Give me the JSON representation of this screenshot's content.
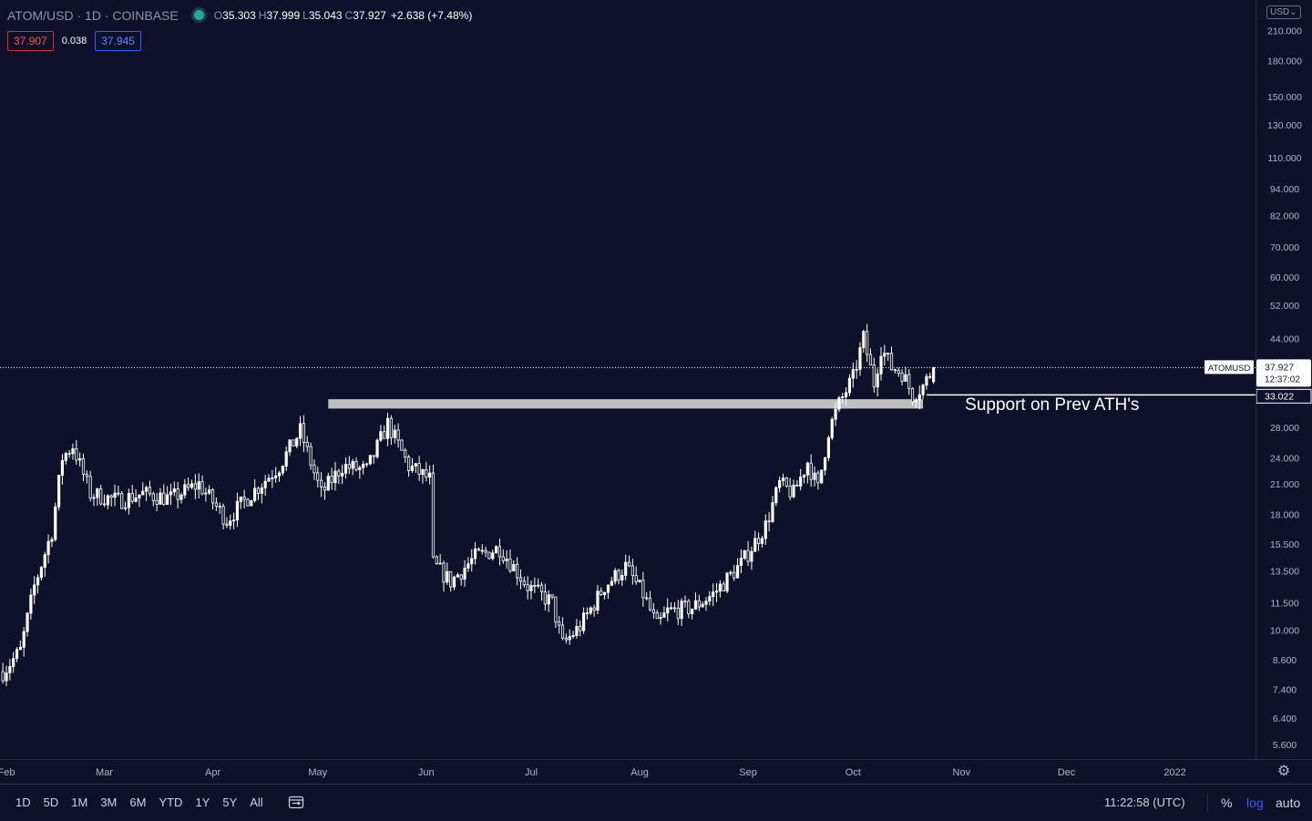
{
  "header": {
    "symbol": "ATOM/USD · 1D · COINBASE",
    "open_key": "O",
    "open": "35.303",
    "high_key": "H",
    "high": "37.999",
    "low_key": "L",
    "low": "35.043",
    "close_key": "C",
    "close": "37.927",
    "change": "+2.638 (+7.48%)"
  },
  "quote": {
    "bid": "37.907",
    "spread": "0.038",
    "ask": "37.945"
  },
  "currency": "USD",
  "colors": {
    "background": "#0f112a",
    "candle": "#ffffff",
    "support_zone": "#bfbfbf",
    "bid": "#ff5252",
    "ask": "#2962ff",
    "log_active": "#2962ff"
  },
  "chart_data": {
    "type": "candlestick",
    "scale": "log",
    "ylim": [
      5.2,
      245
    ],
    "price_axis_ticks": [
      "210.000",
      "180.000",
      "150.000",
      "130.000",
      "110.000",
      "94.000",
      "82.000",
      "70.000",
      "60.000",
      "52.000",
      "44.000",
      "28.000",
      "24.000",
      "21.000",
      "18.000",
      "15.500",
      "13.500",
      "11.500",
      "10.000",
      "8.600",
      "7.400",
      "6.400",
      "5.600"
    ],
    "price_axis_tick_values": [
      210,
      180,
      150,
      130,
      110,
      94,
      82,
      70,
      60,
      52,
      44,
      28,
      24,
      21,
      18,
      15.5,
      13.5,
      11.5,
      10,
      8.6,
      7.4,
      6.4,
      5.6
    ],
    "time_axis_ticks": [
      "Feb",
      "Mar",
      "Apr",
      "May",
      "Jun",
      "Jul",
      "Aug",
      "Sep",
      "Oct",
      "Nov",
      "Dec",
      "2022"
    ],
    "time_axis_tick_dates": [
      "2021-02-01",
      "2021-03-01",
      "2021-04-01",
      "2021-05-01",
      "2021-06-01",
      "2021-07-01",
      "2021-08-01",
      "2021-09-01",
      "2021-10-01",
      "2021-11-01",
      "2021-12-01",
      "2022-01-01"
    ],
    "x_start": "2021-02-01",
    "x_end": "2022-01-17",
    "candles_first_date": "2021-01-31",
    "candles_last_date": "2021-10-24",
    "anchor_closes": [
      {
        "date": "2021-01-31",
        "close": 8.1
      },
      {
        "date": "2021-02-05",
        "close": 9.0
      },
      {
        "date": "2021-02-09",
        "close": 12.5
      },
      {
        "date": "2021-02-14",
        "close": 16.5
      },
      {
        "date": "2021-02-17",
        "close": 24.0
      },
      {
        "date": "2021-02-20",
        "close": 25.5
      },
      {
        "date": "2021-02-25",
        "close": 20.0
      },
      {
        "date": "2021-03-05",
        "close": 19.3
      },
      {
        "date": "2021-03-12",
        "close": 20.0
      },
      {
        "date": "2021-03-20",
        "close": 19.5
      },
      {
        "date": "2021-03-28",
        "close": 21.0
      },
      {
        "date": "2021-04-05",
        "close": 17.5
      },
      {
        "date": "2021-04-12",
        "close": 20.0
      },
      {
        "date": "2021-04-20",
        "close": 23.0
      },
      {
        "date": "2021-04-26",
        "close": 27.5
      },
      {
        "date": "2021-05-02",
        "close": 20.0
      },
      {
        "date": "2021-05-08",
        "close": 23.0
      },
      {
        "date": "2021-05-15",
        "close": 22.5
      },
      {
        "date": "2021-05-21",
        "close": 28.5
      },
      {
        "date": "2021-05-27",
        "close": 23.0
      },
      {
        "date": "2021-06-02",
        "close": 21.5
      },
      {
        "date": "2021-06-03",
        "close": 14.0
      },
      {
        "date": "2021-06-08",
        "close": 12.8
      },
      {
        "date": "2021-06-15",
        "close": 14.5
      },
      {
        "date": "2021-06-22",
        "close": 15.2
      },
      {
        "date": "2021-06-30",
        "close": 12.5
      },
      {
        "date": "2021-07-07",
        "close": 11.5
      },
      {
        "date": "2021-07-10",
        "close": 9.3
      },
      {
        "date": "2021-07-15",
        "close": 10.2
      },
      {
        "date": "2021-07-22",
        "close": 12.5
      },
      {
        "date": "2021-07-28",
        "close": 13.8
      },
      {
        "date": "2021-08-02",
        "close": 12.0
      },
      {
        "date": "2021-08-06",
        "close": 10.2
      },
      {
        "date": "2021-08-09",
        "close": 11.0
      },
      {
        "date": "2021-08-16",
        "close": 11.2
      },
      {
        "date": "2021-08-22",
        "close": 12.0
      },
      {
        "date": "2021-08-30",
        "close": 14.0
      },
      {
        "date": "2021-09-06",
        "close": 17.0
      },
      {
        "date": "2021-09-10",
        "close": 21.0
      },
      {
        "date": "2021-09-14",
        "close": 20.0
      },
      {
        "date": "2021-09-18",
        "close": 23.5
      },
      {
        "date": "2021-09-21",
        "close": 20.5
      },
      {
        "date": "2021-09-24",
        "close": 27.5
      },
      {
        "date": "2021-09-27",
        "close": 31.5
      },
      {
        "date": "2021-10-01",
        "close": 36.0
      },
      {
        "date": "2021-10-04",
        "close": 44.0
      },
      {
        "date": "2021-10-07",
        "close": 35.0
      },
      {
        "date": "2021-10-09",
        "close": 42.0
      },
      {
        "date": "2021-10-12",
        "close": 38.0
      },
      {
        "date": "2021-10-15",
        "close": 37.0
      },
      {
        "date": "2021-10-18",
        "close": 33.0
      },
      {
        "date": "2021-10-21",
        "close": 34.5
      },
      {
        "date": "2021-10-24",
        "close": 37.927
      }
    ],
    "last_price": 37.927,
    "last_price_label": "37.927",
    "symbol_label": "ATOMUSD",
    "countdown": "12:37:02",
    "horizontal_line": {
      "price": 33.022,
      "label": "33.022",
      "start_date": "2021-10-22"
    },
    "support_zone": {
      "low": 30.8,
      "high": 32.3,
      "start_date": "2021-05-04",
      "end_date": "2021-10-21"
    },
    "annotation": {
      "text": "Support on Prev ATH's",
      "date": "2021-11-02",
      "price": 30.6
    }
  },
  "bottom_bar": {
    "periods": [
      "1D",
      "5D",
      "1M",
      "3M",
      "6M",
      "YTD",
      "1Y",
      "5Y",
      "All"
    ],
    "time": "11:22:58 (UTC)",
    "percent": "%",
    "log": "log",
    "auto": "auto"
  }
}
